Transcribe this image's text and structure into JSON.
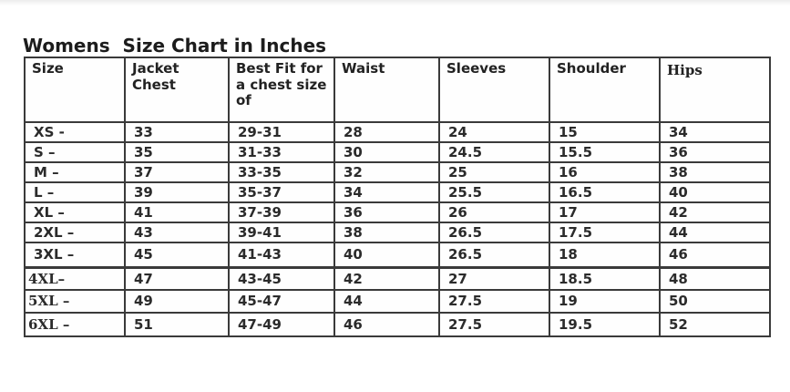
{
  "page": {
    "title": "Womens  Size Chart in Inches"
  },
  "chart_data": {
    "type": "table",
    "title": "Womens  Size Chart in Inches",
    "columns": [
      "Size",
      "Jacket Chest",
      "Best Fit for a chest size of",
      "Waist",
      "Sleeves",
      "Shoulder",
      "Hips"
    ],
    "columns_display": [
      "Size",
      "Jacket\nChest",
      "Best Fit for\na chest size\nof",
      "Waist",
      "Sleeves",
      "Shoulder",
      "Hips"
    ],
    "rows": [
      [
        "XS -",
        "33",
        "29-31",
        "28",
        "24",
        "15",
        "34"
      ],
      [
        "S –",
        "35",
        "31-33",
        "30",
        "24.5",
        "15.5",
        "36"
      ],
      [
        "M –",
        "37",
        "33-35",
        "32",
        "25",
        "16",
        "38"
      ],
      [
        "L –",
        "39",
        "35-37",
        "34",
        "25.5",
        "16.5",
        "40"
      ],
      [
        "XL –",
        "41",
        "37-39",
        "36",
        "26",
        "17",
        "42"
      ],
      [
        "2XL –",
        "43",
        "39-41",
        "38",
        "26.5",
        "17.5",
        "44"
      ],
      [
        "3XL –",
        "45",
        "41-43",
        "40",
        "26.5",
        "18",
        "46"
      ],
      [
        "4XL–",
        "47",
        "43-45",
        "42",
        "27",
        "18.5",
        "48"
      ],
      [
        "5XL –",
        "49",
        "45-47",
        "44",
        "27.5",
        "19",
        "50"
      ],
      [
        "6XL –",
        "51",
        "47-49",
        "46",
        "27.5",
        "19.5",
        "52"
      ]
    ],
    "units": "inches",
    "colors": {
      "background": "#ffffff",
      "border": "#3a3a3a",
      "text": "#2b2b2b"
    }
  }
}
